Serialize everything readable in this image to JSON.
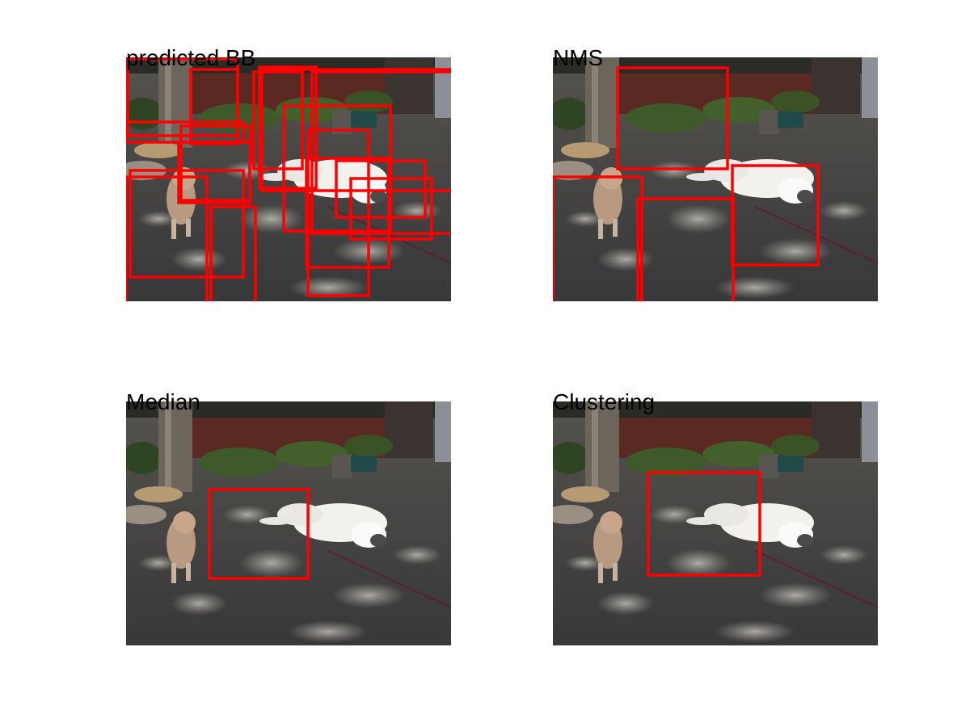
{
  "panels": [
    {
      "id": "p1",
      "title": "predicted BB",
      "boxes": [
        [
          2,
          2,
          136,
          95
        ],
        [
          80,
          15,
          58,
          92
        ],
        [
          0,
          80,
          145,
          25
        ],
        [
          68,
          85,
          85,
          92
        ],
        [
          65,
          105,
          88,
          75
        ],
        [
          158,
          18,
          60,
          120
        ],
        [
          165,
          12,
          70,
          150
        ],
        [
          195,
          60,
          132,
          155
        ],
        [
          223,
          125,
          102,
          135
        ],
        [
          225,
          90,
          75,
          205
        ],
        [
          5,
          140,
          140,
          132
        ],
        [
          0,
          148,
          100,
          180
        ],
        [
          230,
          18,
          175,
          200
        ],
        [
          260,
          128,
          110,
          70
        ],
        [
          278,
          150,
          100,
          75
        ],
        [
          168,
          15,
          292,
          150
        ],
        [
          105,
          185,
          55,
          125
        ]
      ]
    },
    {
      "id": "p2",
      "title": "NMS",
      "boxes": [
        [
          80,
          13,
          136,
          125
        ],
        [
          222,
          134,
          106,
          123
        ],
        [
          0,
          148,
          110,
          235
        ],
        [
          105,
          175,
          118,
          210
        ]
      ]
    },
    {
      "id": "p3",
      "title": "Median",
      "boxes": [
        [
          103,
          109,
          122,
          110
        ]
      ]
    },
    {
      "id": "p4",
      "title": "Clustering",
      "boxes": [
        [
          118,
          88,
          138,
          127
        ]
      ]
    }
  ]
}
